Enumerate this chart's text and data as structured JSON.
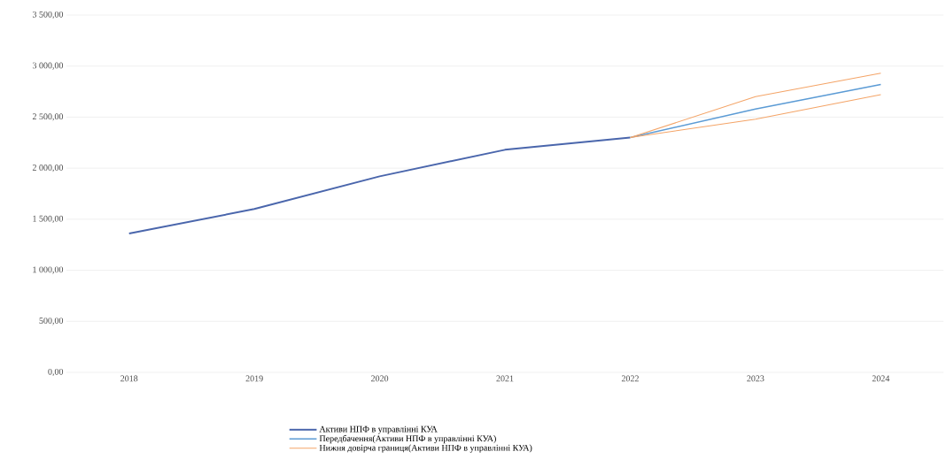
{
  "chart_data": {
    "type": "line",
    "categories": [
      "2018",
      "2019",
      "2020",
      "2021",
      "2022",
      "2023",
      "2024"
    ],
    "series": [
      {
        "name": "Активи НПФ в управлінні КУА",
        "color": "#4a66ac",
        "values": [
          1360,
          1600,
          1920,
          2180,
          2300,
          null,
          null
        ]
      },
      {
        "name": "Передбачення(Активи НПФ в управлінні КУА)",
        "color": "#5b9bd5",
        "values": [
          null,
          null,
          null,
          null,
          2300,
          2580,
          2820
        ]
      },
      {
        "name": "Нижня довірча границя(Активи НПФ в управлінні КУА)",
        "color": "#f4a467",
        "values": [
          null,
          null,
          null,
          null,
          2300,
          2480,
          2720
        ]
      },
      {
        "color": "#f4a467",
        "values": [
          null,
          null,
          null,
          null,
          2300,
          2700,
          2930
        ]
      }
    ],
    "ylim": [
      0,
      3500
    ],
    "yticks": [
      {
        "value": 0,
        "label": "0,00"
      },
      {
        "value": 500,
        "label": "500,00"
      },
      {
        "value": 1000,
        "label": "1 000,00"
      },
      {
        "value": 1500,
        "label": "1 500,00"
      },
      {
        "value": 2000,
        "label": "2 000,00"
      },
      {
        "value": 2500,
        "label": "2 500,00"
      },
      {
        "value": 3000,
        "label": "3 000,00"
      },
      {
        "value": 3500,
        "label": "3 500,00"
      }
    ],
    "grid": "y",
    "legend": "bottom",
    "marker": "none",
    "line_style": "solid"
  }
}
